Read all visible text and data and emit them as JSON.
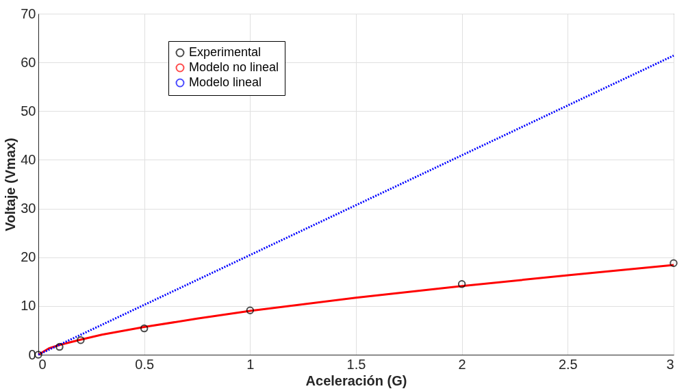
{
  "chart_data": {
    "type": "line",
    "xlabel": "Aceleración (G)",
    "ylabel": "Voltaje (Vmax)",
    "xlim": [
      0,
      3
    ],
    "ylim": [
      0,
      70
    ],
    "xticks": [
      0,
      0.5,
      1,
      1.5,
      2,
      2.5,
      3
    ],
    "yticks": [
      0,
      10,
      20,
      30,
      40,
      50,
      60,
      70
    ],
    "grid": true,
    "legend": "top left",
    "series": [
      {
        "name": "Experimental",
        "type": "scatter",
        "marker": "circle",
        "color": "#000000",
        "x": [
          0,
          0.1,
          0.2,
          0.5,
          1,
          2,
          3
        ],
        "values": [
          0,
          1.6,
          3.0,
          5.4,
          9.1,
          14.5,
          18.8
        ]
      },
      {
        "name": "Modelo no lineal",
        "line_style": "solid",
        "color": "#ff0000",
        "x": [
          0,
          0.05,
          0.1,
          0.2,
          0.3,
          0.5,
          0.75,
          1,
          1.5,
          2,
          2.5,
          3
        ],
        "values": [
          0,
          1.3,
          2.0,
          3.1,
          4.1,
          5.7,
          7.4,
          9.0,
          11.7,
          14.1,
          16.3,
          18.4
        ]
      },
      {
        "name": "Modelo lineal",
        "line_style": "dotted",
        "color": "#0000ff",
        "x": [
          0,
          3
        ],
        "values": [
          0,
          61.4
        ]
      }
    ]
  }
}
